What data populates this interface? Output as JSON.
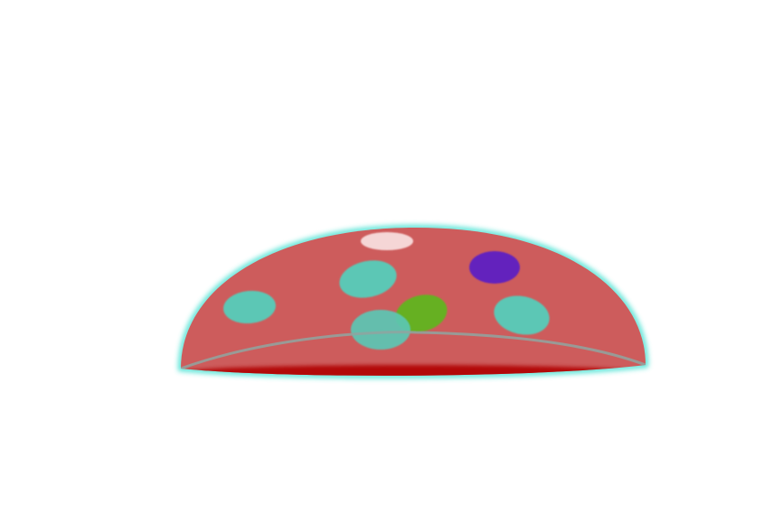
{
  "scene": {
    "background": "#ffffff",
    "subject": "mushroom-cap",
    "colors": {
      "cap_fill": "#cd5c5c",
      "cap_outline_glow": "#40e0d0",
      "cap_rim_shadow": "#b00000",
      "cap_base_arc": "#8fa4a0",
      "highlight_spot": "#f5d6d6",
      "purple_spot": "#6421bd",
      "green_spot": "#66b022",
      "teal_spots": "#5cc7b5"
    }
  }
}
